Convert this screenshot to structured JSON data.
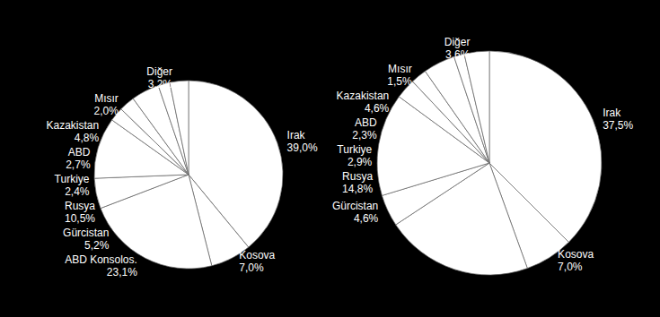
{
  "chart_data": [
    {
      "type": "pie",
      "categories": [
        "Irak",
        "Kosova",
        "ABD Konsolos.",
        "Gürcistan",
        "Rusya",
        "Turkiye",
        "ABD",
        "Kazakistan",
        "Mısır",
        "Diğer"
      ],
      "values": [
        39.0,
        7.0,
        23.1,
        5.2,
        10.5,
        2.4,
        2.7,
        4.8,
        2.0,
        3.2
      ],
      "value_labels": [
        "39,0%",
        "7,0%",
        "23,1%",
        "5,2%",
        "10,5%",
        "2,4%",
        "2,7%",
        "4,8%",
        "2,0%",
        "3,2%"
      ],
      "color": "#ffffff",
      "data_labels": true
    },
    {
      "type": "pie",
      "categories": [
        "Irak",
        "Kosova",
        null,
        "Gürcistan",
        "Rusya",
        "Turkiye",
        "ABD",
        "Kazakistan",
        "Mısır",
        "Diğer"
      ],
      "values": [
        37.5,
        7.0,
        21.2,
        4.6,
        14.8,
        2.9,
        2.3,
        4.6,
        1.5,
        3.6
      ],
      "value_labels": [
        "37,5%",
        "7,0%",
        null,
        "4,6%",
        "14,8%",
        "2,9%",
        "2,3%",
        "4,6%",
        "1,5%",
        "3,6%"
      ],
      "color": "#ffffff",
      "data_labels": true
    }
  ]
}
